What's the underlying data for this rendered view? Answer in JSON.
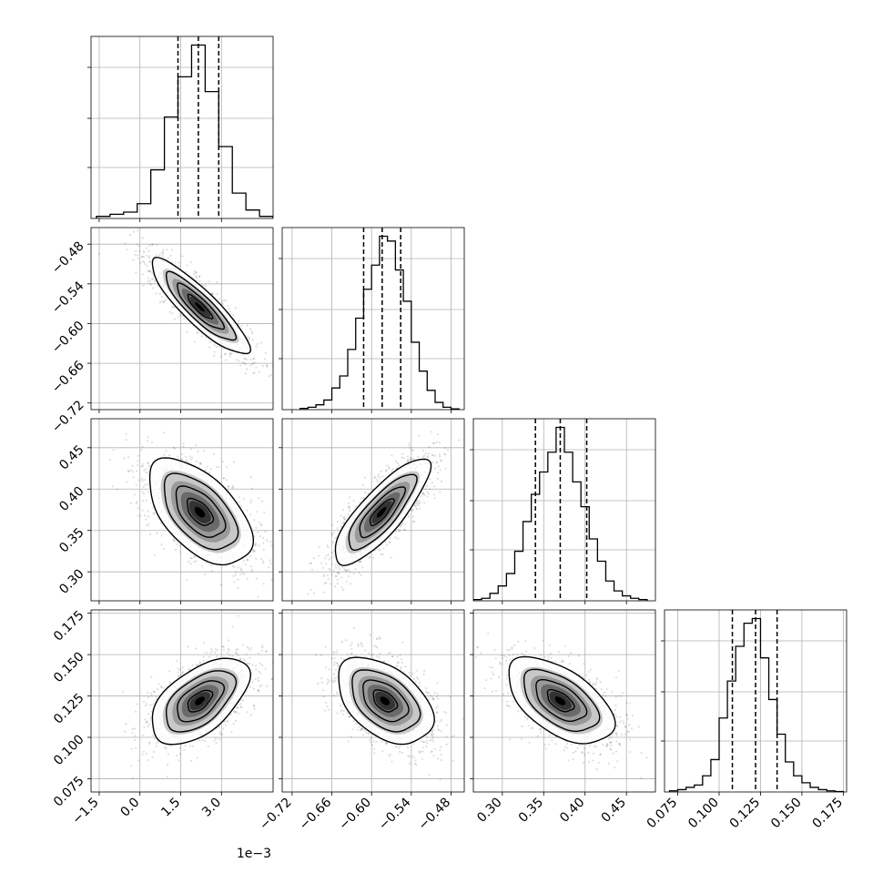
{
  "chart_data": [
    {
      "type": "histogram",
      "variable_index": 0,
      "bin_edges": [
        -1.6,
        -1.1,
        -0.6,
        -0.1,
        0.4,
        0.9,
        1.4,
        1.9,
        2.4,
        2.9,
        3.4,
        3.9,
        4.4,
        4.9
      ],
      "counts": [
        1,
        2,
        3,
        7,
        23,
        48,
        67,
        82,
        60,
        34,
        12,
        4,
        1
      ],
      "quantiles": [
        1.4,
        2.15,
        2.9
      ],
      "xlim": [
        -1.8,
        4.9
      ],
      "xticks": [
        "-1.5",
        "0.0",
        "1.5",
        "3.0"
      ],
      "offset_label": "1e−3",
      "grid": true
    },
    {
      "type": "histogram",
      "variable_index": 1,
      "bin_edges": [
        -0.708,
        -0.696,
        -0.684,
        -0.672,
        -0.66,
        -0.648,
        -0.636,
        -0.624,
        -0.612,
        -0.6,
        -0.588,
        -0.576,
        -0.564,
        -0.552,
        -0.54,
        -0.528,
        -0.516,
        -0.504,
        -0.492,
        -0.48,
        -0.468
      ],
      "counts": [
        0.5,
        1,
        2,
        4,
        9,
        14,
        25,
        38,
        50,
        60,
        72,
        70,
        58,
        45,
        28,
        16,
        8,
        3,
        1,
        0.3
      ],
      "quantiles": [
        -0.612,
        -0.584,
        -0.556
      ],
      "xlim": [
        -0.735,
        -0.46
      ],
      "xticks": [
        "-0.72",
        "-0.66",
        "-0.60",
        "-0.54",
        "-0.48"
      ],
      "grid": true
    },
    {
      "type": "histogram",
      "variable_index": 2,
      "bin_edges": [
        0.265,
        0.275,
        0.285,
        0.295,
        0.305,
        0.315,
        0.325,
        0.335,
        0.345,
        0.355,
        0.365,
        0.375,
        0.385,
        0.395,
        0.405,
        0.415,
        0.425,
        0.435,
        0.445,
        0.455,
        0.465,
        0.475
      ],
      "counts": [
        0.5,
        1,
        3,
        6,
        11,
        20,
        32,
        43,
        52,
        60,
        70,
        60,
        48,
        38,
        25,
        16,
        8,
        4,
        2,
        1,
        0.5
      ],
      "quantiles": [
        0.34,
        0.37,
        0.402
      ],
      "xlim": [
        0.265,
        0.485
      ],
      "xticks": [
        "0.30",
        "0.35",
        "0.40",
        "0.45"
      ],
      "grid": true
    },
    {
      "type": "histogram",
      "variable_index": 3,
      "bin_edges": [
        0.07,
        0.075,
        0.08,
        0.085,
        0.09,
        0.095,
        0.1,
        0.105,
        0.11,
        0.115,
        0.12,
        0.125,
        0.13,
        0.135,
        0.14,
        0.145,
        0.15,
        0.155,
        0.16,
        0.165,
        0.17,
        0.175
      ],
      "counts": [
        0.5,
        1,
        2,
        3,
        7,
        14,
        32,
        48,
        63,
        73,
        75,
        58,
        40,
        25,
        13,
        7,
        4,
        2,
        1,
        0.5,
        0.2
      ],
      "quantiles": [
        0.108,
        0.122,
        0.135
      ],
      "xlim": [
        0.067,
        0.177
      ],
      "xticks": [
        "0.075",
        "0.100",
        "0.125",
        "0.150",
        "0.175"
      ],
      "grid": true
    },
    {
      "type": "scatter",
      "variables": [
        0,
        1
      ],
      "center": [
        2.2,
        -0.575
      ],
      "sd": [
        0.9,
        0.036
      ],
      "correlation": -0.88,
      "xlim": [
        -1.8,
        4.9
      ],
      "ylim": [
        -0.73,
        -0.455
      ],
      "yticks": [
        "-0.48",
        "-0.54",
        "-0.60",
        "-0.66",
        "-0.72"
      ]
    },
    {
      "type": "scatter",
      "variables": [
        0,
        2
      ],
      "center": [
        2.2,
        0.372
      ],
      "sd": [
        0.95,
        0.032
      ],
      "correlation": -0.55,
      "xlim": [
        -1.8,
        4.9
      ],
      "ylim": [
        0.265,
        0.485
      ],
      "yticks": [
        "0.45",
        "0.40",
        "0.35",
        "0.30"
      ]
    },
    {
      "type": "scatter",
      "variables": [
        1,
        2
      ],
      "center": [
        -0.585,
        0.372
      ],
      "sd": [
        0.036,
        0.032
      ],
      "correlation": 0.82,
      "xlim": [
        -0.735,
        -0.46
      ],
      "ylim": [
        0.265,
        0.485
      ]
    },
    {
      "type": "scatter",
      "variables": [
        0,
        3
      ],
      "center": [
        2.2,
        0.122
      ],
      "sd": [
        0.9,
        0.013
      ],
      "correlation": 0.55,
      "xlim": [
        -1.8,
        4.9
      ],
      "ylim": [
        0.067,
        0.177
      ],
      "yticks": [
        "0.175",
        "0.150",
        "0.125",
        "0.100",
        "0.075"
      ]
    },
    {
      "type": "scatter",
      "variables": [
        1,
        3
      ],
      "center": [
        -0.58,
        0.122
      ],
      "sd": [
        0.036,
        0.013
      ],
      "correlation": -0.45,
      "xlim": [
        -0.735,
        -0.46
      ],
      "ylim": [
        0.067,
        0.177
      ]
    },
    {
      "type": "scatter",
      "variables": [
        2,
        3
      ],
      "center": [
        0.37,
        0.122
      ],
      "sd": [
        0.032,
        0.013
      ],
      "correlation": -0.55,
      "xlim": [
        0.265,
        0.485
      ],
      "ylim": [
        0.067,
        0.177
      ]
    }
  ]
}
